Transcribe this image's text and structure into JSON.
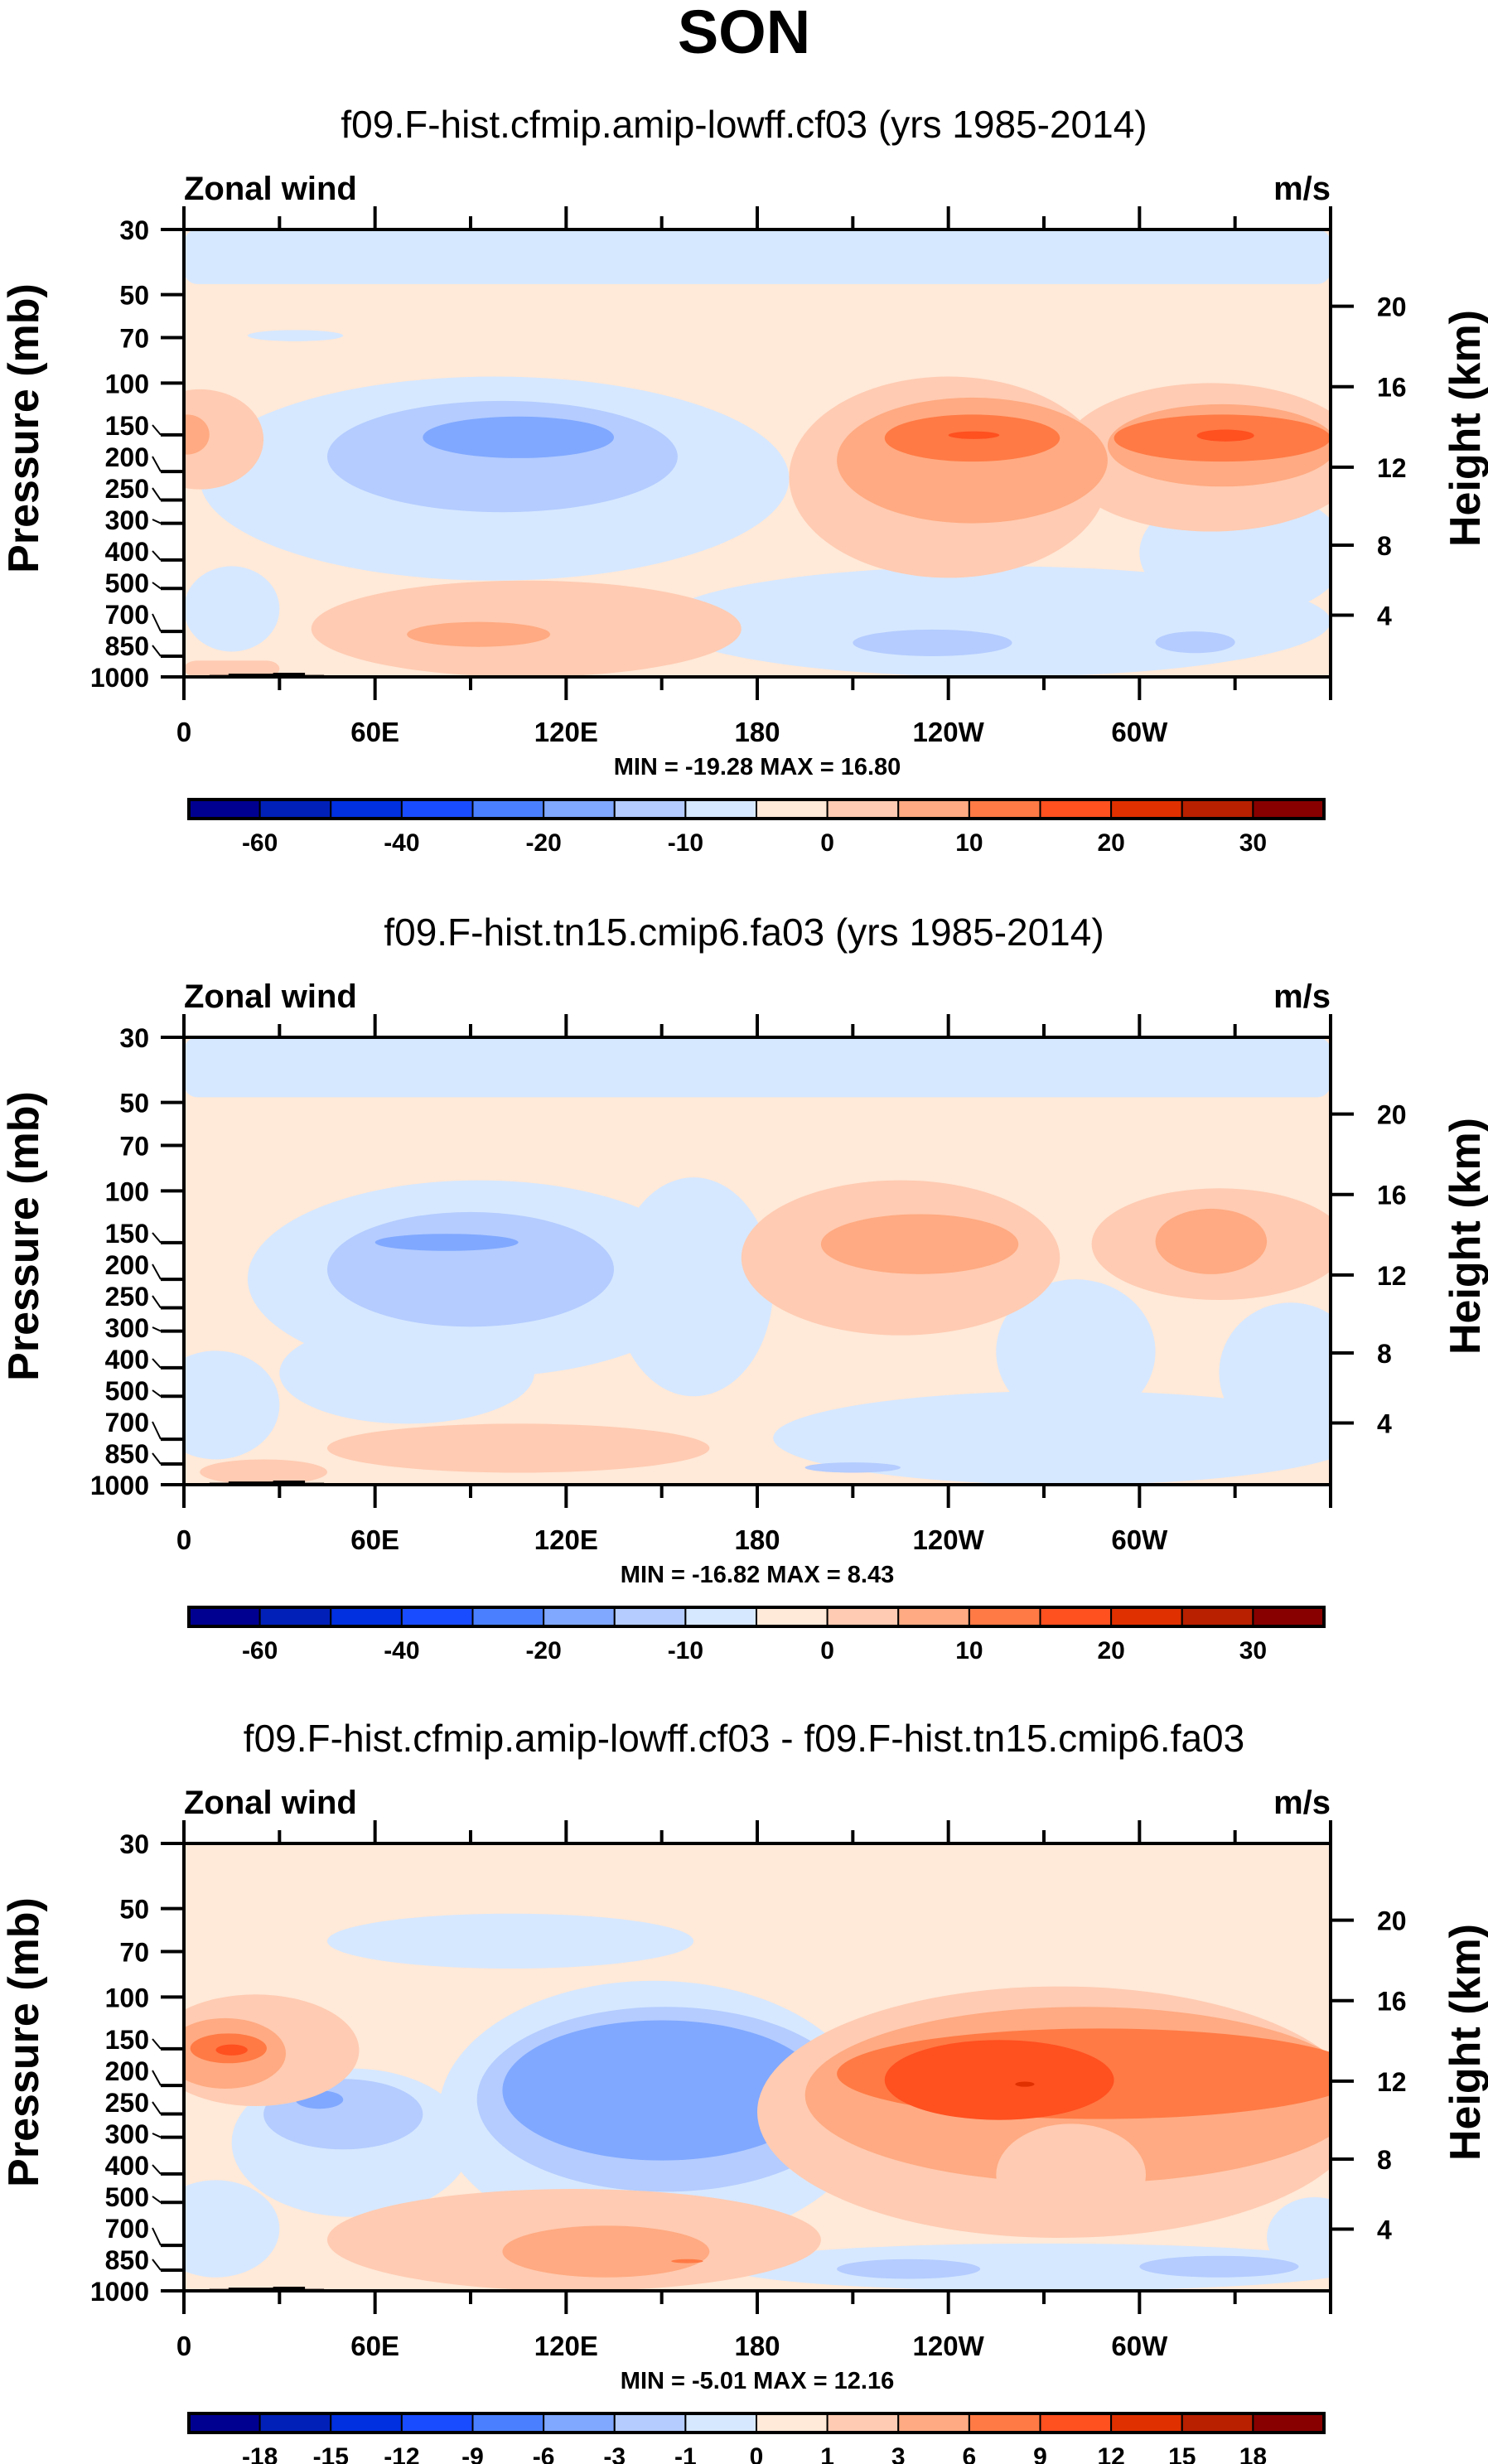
{
  "chart_data": {
    "type": "heatmap",
    "title": "SON",
    "colors": [
      "#000090",
      "#0020B8",
      "#0030E0",
      "#1A4CFF",
      "#4A80FF",
      "#80A8FF",
      "#B4CCFF",
      "#D6E8FF",
      "#FFE9D8",
      "#FFCBB2",
      "#FFAA82",
      "#FF7A45",
      "#FF5020",
      "#E03000",
      "#B82000",
      "#880000"
    ],
    "xlim": [
      0,
      360
    ],
    "ylim_mb": [
      1000,
      30
    ],
    "x_ticks": [
      {
        "v": 0,
        "t": "0"
      },
      {
        "v": 60,
        "t": "60E"
      },
      {
        "v": 120,
        "t": "120E"
      },
      {
        "v": 180,
        "t": "180"
      },
      {
        "v": 240,
        "t": "120W"
      },
      {
        "v": 300,
        "t": "60W"
      }
    ],
    "p_ticks": [
      30,
      50,
      70,
      100,
      150,
      200,
      250,
      300,
      400,
      500,
      700,
      850,
      1000
    ],
    "p_tick_labels": [
      "30",
      "50",
      "70",
      "100",
      "150",
      "200",
      "250",
      "300",
      "400",
      "500",
      "700",
      "850",
      "1000"
    ],
    "z_ticks": [
      4,
      8,
      12,
      16,
      20
    ],
    "z_tick_labels": [
      "4",
      "8",
      "12",
      "16",
      "20"
    ],
    "ylabel": "Pressure (mb)",
    "ylabel_right": "Height (km)",
    "topography": [
      [
        8,
        1000
      ],
      [
        8,
        985
      ],
      [
        14,
        985
      ],
      [
        14,
        975
      ],
      [
        28,
        975
      ],
      [
        28,
        968
      ],
      [
        38,
        968
      ],
      [
        38,
        985
      ],
      [
        44,
        985
      ],
      [
        44,
        1000
      ],
      [
        100,
        1000
      ],
      [
        100,
        990
      ],
      [
        104,
        990
      ],
      [
        104,
        1000
      ],
      [
        282,
        1000
      ],
      [
        282,
        988
      ],
      [
        286,
        988
      ],
      [
        286,
        995
      ],
      [
        308,
        995
      ],
      [
        308,
        1000
      ]
    ],
    "panels": [
      {
        "subtitle": "f09.F-hist.cfmip.amip-lowff.cf03 (yrs 1985-2014)",
        "left_label": "Zonal wind",
        "right_label": "m/s",
        "minmax": "MIN = -19.28   MAX =  16.80",
        "min": -19.28,
        "max": 16.8,
        "colorbar_labels": [
          "-60",
          "",
          "-40",
          "",
          "-20",
          "",
          "-10",
          "",
          "0",
          "",
          "10",
          "",
          "20",
          "",
          "30"
        ],
        "background": 8,
        "regions": [
          [
            7,
            0,
            360,
            30,
            46,
            "r"
          ],
          [
            7,
            20,
            50,
            66,
            72,
            "e"
          ],
          [
            7,
            5,
            190,
            95,
            470,
            "e"
          ],
          [
            7,
            0,
            30,
            420,
            820,
            "e"
          ],
          [
            7,
            150,
            360,
            420,
            1000,
            "e"
          ],
          [
            7,
            300,
            365,
            230,
            620,
            "e"
          ],
          [
            6,
            45,
            155,
            115,
            275,
            "e"
          ],
          [
            5,
            75,
            135,
            130,
            180,
            "e"
          ],
          [
            9,
            40,
            175,
            470,
            1000,
            "e"
          ],
          [
            9,
            0,
            30,
            880,
            1000,
            "r"
          ],
          [
            10,
            70,
            115,
            650,
            790,
            "e"
          ],
          [
            9,
            -15,
            25,
            105,
            230,
            "e"
          ],
          [
            10,
            -6,
            8,
            128,
            175,
            "e"
          ],
          [
            9,
            190,
            290,
            95,
            460,
            "e"
          ],
          [
            9,
            275,
            370,
            100,
            320,
            "e"
          ],
          [
            10,
            205,
            290,
            112,
            300,
            "e"
          ],
          [
            10,
            290,
            362,
            118,
            225,
            "e"
          ],
          [
            11,
            220,
            275,
            128,
            185,
            "e"
          ],
          [
            11,
            292,
            360,
            128,
            185,
            "e"
          ],
          [
            12,
            240,
            256,
            146,
            155,
            "e"
          ],
          [
            12,
            318,
            336,
            144,
            158,
            "e"
          ],
          [
            6,
            210,
            260,
            690,
            850,
            "e"
          ],
          [
            6,
            305,
            330,
            700,
            830,
            "e"
          ]
        ]
      },
      {
        "subtitle": "f09.F-hist.tn15.cmip6.fa03 (yrs 1985-2014)",
        "left_label": "Zonal wind",
        "right_label": "m/s",
        "minmax": "MIN = -16.82   MAX =   8.43",
        "min": -16.82,
        "max": 8.43,
        "colorbar_labels": [
          "-60",
          "",
          "-40",
          "",
          "-20",
          "",
          "-10",
          "",
          "0",
          "",
          "10",
          "",
          "20",
          "",
          "30"
        ],
        "background": 8,
        "regions": [
          [
            7,
            0,
            360,
            30,
            48,
            "r"
          ],
          [
            7,
            20,
            165,
            92,
            430,
            "e"
          ],
          [
            7,
            30,
            110,
            280,
            620,
            "e"
          ],
          [
            7,
            -10,
            30,
            350,
            820,
            "e"
          ],
          [
            7,
            135,
            185,
            90,
            500,
            "e"
          ],
          [
            7,
            185,
            370,
            480,
            1000,
            "e"
          ],
          [
            7,
            255,
            305,
            200,
            620,
            "e"
          ],
          [
            7,
            325,
            370,
            240,
            720,
            "e"
          ],
          [
            6,
            45,
            135,
            118,
            290,
            "e"
          ],
          [
            5,
            60,
            105,
            140,
            160,
            "e"
          ],
          [
            9,
            45,
            165,
            620,
            910,
            "e"
          ],
          [
            9,
            5,
            45,
            820,
            1000,
            "e"
          ],
          [
            9,
            175,
            275,
            92,
            310,
            "e"
          ],
          [
            9,
            285,
            365,
            98,
            235,
            "e"
          ],
          [
            10,
            200,
            262,
            120,
            192,
            "e"
          ],
          [
            10,
            305,
            340,
            115,
            192,
            "e"
          ],
          [
            6,
            195,
            225,
            840,
            910,
            "e"
          ]
        ]
      },
      {
        "subtitle": "f09.F-hist.cfmip.amip-lowff.cf03 - f09.F-hist.tn15.cmip6.fa03",
        "left_label": "Zonal wind",
        "right_label": "m/s",
        "minmax": "MIN = -5.01   MAX = 12.16",
        "min": -5.01,
        "max": 12.16,
        "colorbar_labels": [
          "-18",
          "-15",
          "-12",
          "-9",
          "-6",
          "-3",
          "-1",
          "0",
          "1",
          "3",
          "6",
          "9",
          "12",
          "15",
          "18"
        ],
        "background": 8,
        "regions": [
          [
            7,
            45,
            160,
            52,
            80,
            "e"
          ],
          [
            7,
            80,
            215,
            88,
            700,
            "e"
          ],
          [
            7,
            15,
            90,
            175,
            560,
            "e"
          ],
          [
            7,
            -10,
            30,
            420,
            900,
            "e"
          ],
          [
            7,
            170,
            370,
            690,
            1000,
            "e"
          ],
          [
            7,
            340,
            370,
            480,
            900,
            "e"
          ],
          [
            6,
            92,
            210,
            108,
            460,
            "e"
          ],
          [
            6,
            25,
            75,
            190,
            330,
            "e"
          ],
          [
            6,
            205,
            250,
            780,
            910,
            "e"
          ],
          [
            6,
            300,
            350,
            760,
            900,
            "e"
          ],
          [
            5,
            100,
            200,
            120,
            360,
            "e"
          ],
          [
            5,
            35,
            50,
            208,
            240,
            "e"
          ],
          [
            9,
            45,
            200,
            450,
            1000,
            "e"
          ],
          [
            10,
            100,
            165,
            600,
            900,
            "e"
          ],
          [
            11,
            153,
            163,
            780,
            805,
            "e"
          ],
          [
            9,
            -10,
            55,
            98,
            235,
            "e"
          ],
          [
            10,
            -6,
            32,
            118,
            205,
            "e"
          ],
          [
            11,
            2,
            26,
            133,
            168,
            "e"
          ],
          [
            12,
            10,
            20,
            145,
            158,
            "e"
          ],
          [
            9,
            180,
            370,
            92,
            660,
            "e"
          ],
          [
            10,
            195,
            370,
            108,
            430,
            "e"
          ],
          [
            11,
            205,
            370,
            128,
            260,
            "e"
          ],
          [
            9,
            255,
            302,
            270,
            600,
            "e"
          ],
          [
            12,
            220,
            292,
            140,
            262,
            "e"
          ],
          [
            13,
            261,
            267,
            194,
            202,
            "e"
          ]
        ]
      }
    ]
  }
}
